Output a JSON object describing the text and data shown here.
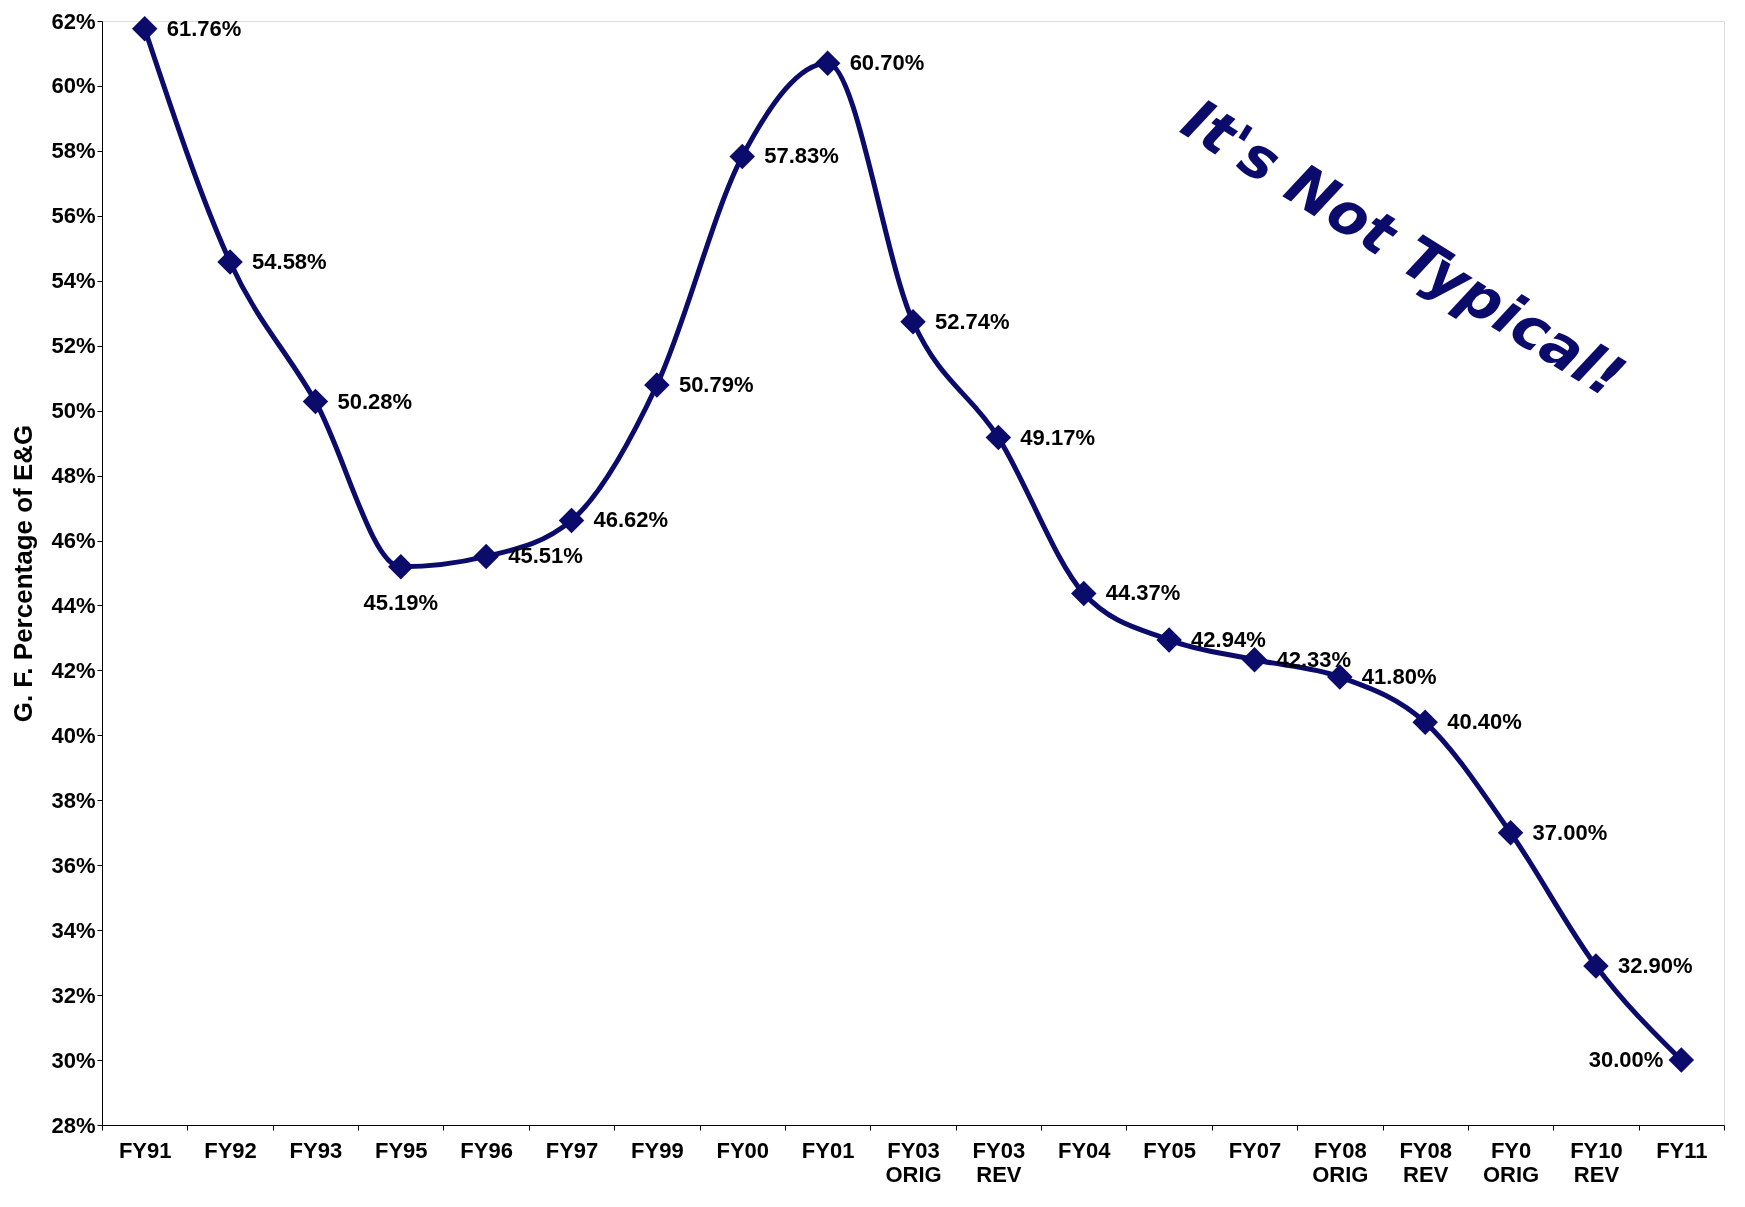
{
  "chart_data": {
    "type": "line",
    "categories": [
      "FY91",
      "FY92",
      "FY93",
      "FY95",
      "FY96",
      "FY97",
      "FY99",
      "FY00",
      "FY01",
      "FY03 ORIG",
      "FY03 REV",
      "FY04",
      "FY05",
      "FY07",
      "FY08 ORIG",
      "FY08 REV",
      "FY0 ORIG",
      "FY10 REV",
      "FY11"
    ],
    "series": [
      {
        "color": "#0b0b6b",
        "values": [
          61.76,
          54.58,
          50.28,
          45.19,
          45.51,
          46.62,
          50.79,
          57.83,
          60.7,
          52.74,
          49.17,
          44.37,
          42.94,
          42.33,
          41.8,
          40.4,
          37.0,
          32.9,
          30.0
        ],
        "value_labels": [
          "61.76%",
          "54.58%",
          "50.28%",
          "45.19%",
          "45.51%",
          "46.62%",
          "50.79%",
          "57.83%",
          "60.70%",
          "52.74%",
          "49.17%",
          "44.37%",
          "42.94%",
          "42.33%",
          "41.80%",
          "40.40%",
          "37.00%",
          "32.90%",
          "30.00%"
        ]
      }
    ],
    "ylabel": "G. F. Percentage of E&G",
    "ylim": [
      28,
      62
    ],
    "yticks": [
      {
        "value": 28,
        "label": "28%"
      },
      {
        "value": 30,
        "label": "30%"
      },
      {
        "value": 32,
        "label": "32%"
      },
      {
        "value": 34,
        "label": "34%"
      },
      {
        "value": 36,
        "label": "36%"
      },
      {
        "value": 38,
        "label": "38%"
      },
      {
        "value": 40,
        "label": "40%"
      },
      {
        "value": 42,
        "label": "42%"
      },
      {
        "value": 44,
        "label": "44%"
      },
      {
        "value": 46,
        "label": "46%"
      },
      {
        "value": 48,
        "label": "48%"
      },
      {
        "value": 50,
        "label": "50%"
      },
      {
        "value": 52,
        "label": "52%"
      },
      {
        "value": 54,
        "label": "54%"
      },
      {
        "value": 56,
        "label": "56%"
      },
      {
        "value": 58,
        "label": "58%"
      },
      {
        "value": 60,
        "label": "60%"
      },
      {
        "value": 62,
        "label": "62%"
      }
    ],
    "annotations": [
      "It's Not Typical!"
    ],
    "marker": "diamond",
    "line_style": "solid",
    "grid": false
  }
}
